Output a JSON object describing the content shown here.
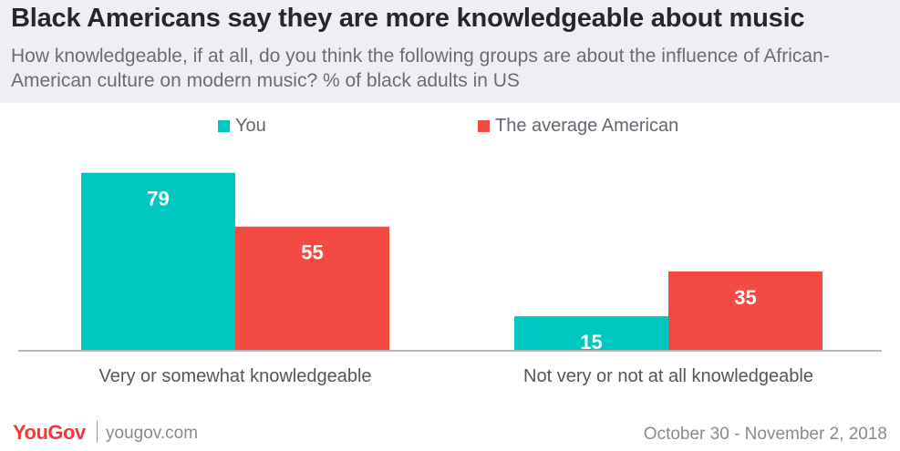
{
  "header": {
    "title": "Black Americans say they are more knowledgeable about music",
    "subtitle": "How knowledgeable, if at all, do you think the following groups are about the influence of African-American culture on modern music? % of black adults in US"
  },
  "colors": {
    "header_bg": "#efeef4",
    "you": "#00c7c2",
    "average_american": "#f34a41",
    "axis": "#b9b9c0",
    "logo": "#ee3a3a"
  },
  "chart_data": {
    "type": "bar",
    "title": "Black Americans say they are more knowledgeable about music",
    "categories": [
      "Very or somewhat knowledgeable",
      "Not very or not at all knowledgeable"
    ],
    "series": [
      {
        "name": "You",
        "values": [
          79,
          15
        ]
      },
      {
        "name": "The average American",
        "values": [
          55,
          35
        ]
      }
    ],
    "xlabel": "",
    "ylabel": "",
    "ylim": [
      0,
      100
    ],
    "grid": false,
    "legend": "top-center",
    "data_labels": true
  },
  "footer": {
    "logo": "YouGov",
    "site": "yougov.com",
    "date": "October 30 - November 2, 2018"
  }
}
